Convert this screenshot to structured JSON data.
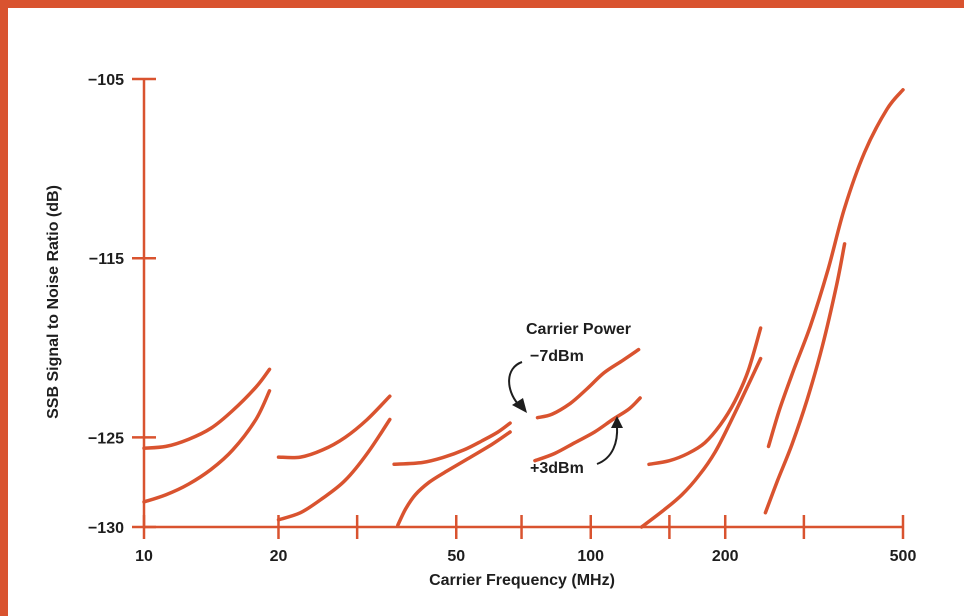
{
  "chart_data": {
    "type": "line",
    "title": "",
    "xlabel": "Carrier Frequency (MHz)",
    "ylabel": "SSB Signal to Noise Ratio (dB)",
    "x_scale": "log",
    "xlim": [
      10,
      500
    ],
    "ylim": [
      -130,
      -105
    ],
    "x_ticks": [
      10,
      20,
      50,
      100,
      200,
      500
    ],
    "x_minor_ticks": [
      30,
      70,
      150,
      300
    ],
    "y_ticks": [
      -105,
      -115,
      -125,
      -130
    ],
    "x_tick_labels": [
      "10",
      "20",
      "50",
      "100",
      "200",
      "500"
    ],
    "y_tick_labels": [
      "−105",
      "−115",
      "−125",
      "−130"
    ],
    "grid": false,
    "colors": {
      "line": "#d9532f",
      "axis": "#d9532f",
      "frame": "#d9532f",
      "text": "#1e1e1e"
    },
    "annotations": {
      "carrier_power": "Carrier Power",
      "minus7": "−7dBm",
      "plus3": "+3dBm"
    },
    "series": [
      {
        "x": [
          10,
          11.2,
          12.6,
          14.1,
          15.8,
          17.8,
          19.1
        ],
        "y": [
          -125.6,
          -125.5,
          -125.1,
          -124.5,
          -123.5,
          -122.2,
          -121.2
        ]
      },
      {
        "x": [
          10,
          11.2,
          12.6,
          14.1,
          15.8,
          17.8,
          19.1
        ],
        "y": [
          -128.6,
          -128.2,
          -127.6,
          -126.8,
          -125.7,
          -124.0,
          -122.4
        ]
      },
      {
        "x": [
          20,
          22.4,
          25.1,
          28.2,
          31.6,
          35.5
        ],
        "y": [
          -126.1,
          -126.1,
          -125.7,
          -125.0,
          -124.0,
          -122.7
        ]
      },
      {
        "x": [
          20,
          22.4,
          25.1,
          28.2,
          31.6,
          35.5
        ],
        "y": [
          -129.6,
          -129.2,
          -128.4,
          -127.4,
          -125.9,
          -124.0
        ]
      },
      {
        "x": [
          36.3,
          42,
          47,
          52,
          57,
          62,
          66
        ],
        "y": [
          -126.5,
          -126.4,
          -126.1,
          -125.7,
          -125.2,
          -124.7,
          -124.2
        ]
      },
      {
        "x": [
          37,
          38.5,
          40.5,
          43.5,
          47.5,
          53,
          60,
          66
        ],
        "y": [
          -129.9,
          -129.0,
          -128.2,
          -127.5,
          -126.9,
          -126.2,
          -125.4,
          -124.7
        ]
      },
      {
        "x": [
          76,
          82,
          90,
          98,
          107,
          118,
          128
        ],
        "y": [
          -123.9,
          -123.7,
          -123.1,
          -122.3,
          -121.4,
          -120.7,
          -120.1
        ]
      },
      {
        "x": [
          75,
          83,
          92,
          102,
          112,
          122,
          129
        ],
        "y": [
          -126.3,
          -125.9,
          -125.3,
          -124.7,
          -124.0,
          -123.4,
          -122.8
        ]
      },
      {
        "x": [
          135,
          150,
          165,
          180,
          195,
          210,
          225,
          240
        ],
        "y": [
          -126.5,
          -126.3,
          -125.9,
          -125.3,
          -124.3,
          -123.0,
          -121.3,
          -118.9
        ]
      },
      {
        "x": [
          130,
          145,
          160,
          175,
          190,
          205,
          222,
          240
        ],
        "y": [
          -130.0,
          -129.1,
          -128.2,
          -127.1,
          -125.8,
          -124.2,
          -122.4,
          -120.6
        ]
      },
      {
        "x": [
          250,
          265,
          285,
          310,
          340,
          370,
          410,
          460,
          500
        ],
        "y": [
          -125.5,
          -123.4,
          -121.2,
          -118.8,
          -115.6,
          -112.2,
          -109.1,
          -106.7,
          -105.6
        ]
      },
      {
        "x": [
          246,
          262,
          282,
          305,
          330,
          355,
          370
        ],
        "y": [
          -129.2,
          -127.4,
          -125.4,
          -122.9,
          -119.9,
          -116.5,
          -114.2
        ]
      }
    ]
  }
}
